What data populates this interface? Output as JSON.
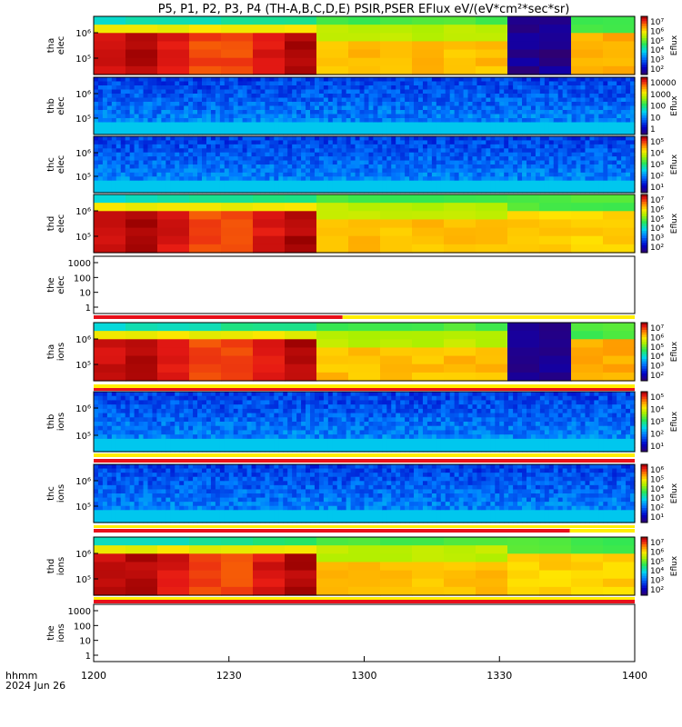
{
  "chart_data": {
    "type": "heatmap",
    "title": "P5, P1, P2, P3, P4 (TH-A,B,C,D,E) PSIR,PSER EFlux eV/(eV*cm²*sec*sr)",
    "x_tick_labels": [
      "1200",
      "1230",
      "1300",
      "1330",
      "1400"
    ],
    "x_range": [
      "1200",
      "1400"
    ],
    "time_label_line1": "hhmm",
    "time_label_line2": "2024 Jun 26",
    "colors": {
      "red": "#e8101a",
      "yellow": "#ffee00",
      "dark_red": "#b00000",
      "black": "#000000"
    },
    "panels": [
      {
        "name": "tha-elec",
        "ylabel": [
          "tha",
          "elec"
        ],
        "ytick_labels": [
          "10⁵",
          "10⁶"
        ],
        "colorbar_label": "Eflux",
        "cbar_tick_labels": [
          "10²",
          "10³",
          "10⁴",
          "10⁵",
          "10⁶",
          "10⁷"
        ],
        "pattern": "hot_gap"
      },
      {
        "name": "thb-elec",
        "ylabel": [
          "thb",
          "elec"
        ],
        "ytick_labels": [
          "10⁵",
          "10⁶"
        ],
        "colorbar_label": "Eflux",
        "cbar_tick_labels": [
          "1",
          "10",
          "100",
          "1000",
          "10000"
        ],
        "pattern": "cold"
      },
      {
        "name": "thc-elec",
        "ylabel": [
          "thc",
          "elec"
        ],
        "ytick_labels": [
          "10⁵",
          "10⁶"
        ],
        "colorbar_label": "Eflux",
        "cbar_tick_labels": [
          "10¹",
          "10²",
          "10³",
          "10⁴",
          "10⁵"
        ],
        "pattern": "cold"
      },
      {
        "name": "thd-elec",
        "ylabel": [
          "thd",
          "elec"
        ],
        "ytick_labels": [
          "10⁵",
          "10⁶"
        ],
        "colorbar_label": "Eflux",
        "cbar_tick_labels": [
          "10²",
          "10³",
          "10⁴",
          "10⁵",
          "10⁶",
          "10⁷"
        ],
        "pattern": "hot"
      },
      {
        "name": "the-elec",
        "ylabel": [
          "the",
          "elec"
        ],
        "ytick_labels": [
          "1",
          "10",
          "100",
          "1000"
        ],
        "pattern": "empty"
      },
      {
        "name": "tha-ions",
        "ylabel": [
          "tha",
          "ions"
        ],
        "ytick_labels": [
          "10⁵",
          "10⁶"
        ],
        "colorbar_label": "Eflux",
        "cbar_tick_labels": [
          "10²",
          "10³",
          "10⁴",
          "10⁵",
          "10⁶",
          "10⁷"
        ],
        "pattern": "hot_gap"
      },
      {
        "name": "thb-ions",
        "ylabel": [
          "thb",
          "ions"
        ],
        "ytick_labels": [
          "10⁵",
          "10⁶"
        ],
        "colorbar_label": "Eflux",
        "cbar_tick_labels": [
          "10¹",
          "10²",
          "10³",
          "10⁴",
          "10⁵"
        ],
        "pattern": "cold"
      },
      {
        "name": "thc-ions",
        "ylabel": [
          "thc",
          "ions"
        ],
        "ytick_labels": [
          "10⁵",
          "10⁶"
        ],
        "colorbar_label": "Eflux",
        "cbar_tick_labels": [
          "10¹",
          "10²",
          "10³",
          "10⁴",
          "10⁵",
          "10⁶"
        ],
        "pattern": "cold"
      },
      {
        "name": "thd-ions",
        "ylabel": [
          "thd",
          "ions"
        ],
        "ytick_labels": [
          "10⁵",
          "10⁶"
        ],
        "colorbar_label": "Eflux",
        "cbar_tick_labels": [
          "10²",
          "10³",
          "10⁴",
          "10⁵",
          "10⁶",
          "10⁷"
        ],
        "pattern": "hot"
      },
      {
        "name": "the-ions",
        "ylabel": [
          "the",
          "ions"
        ],
        "ytick_labels": [
          "1",
          "10",
          "100",
          "1000"
        ],
        "pattern": "empty"
      }
    ]
  }
}
